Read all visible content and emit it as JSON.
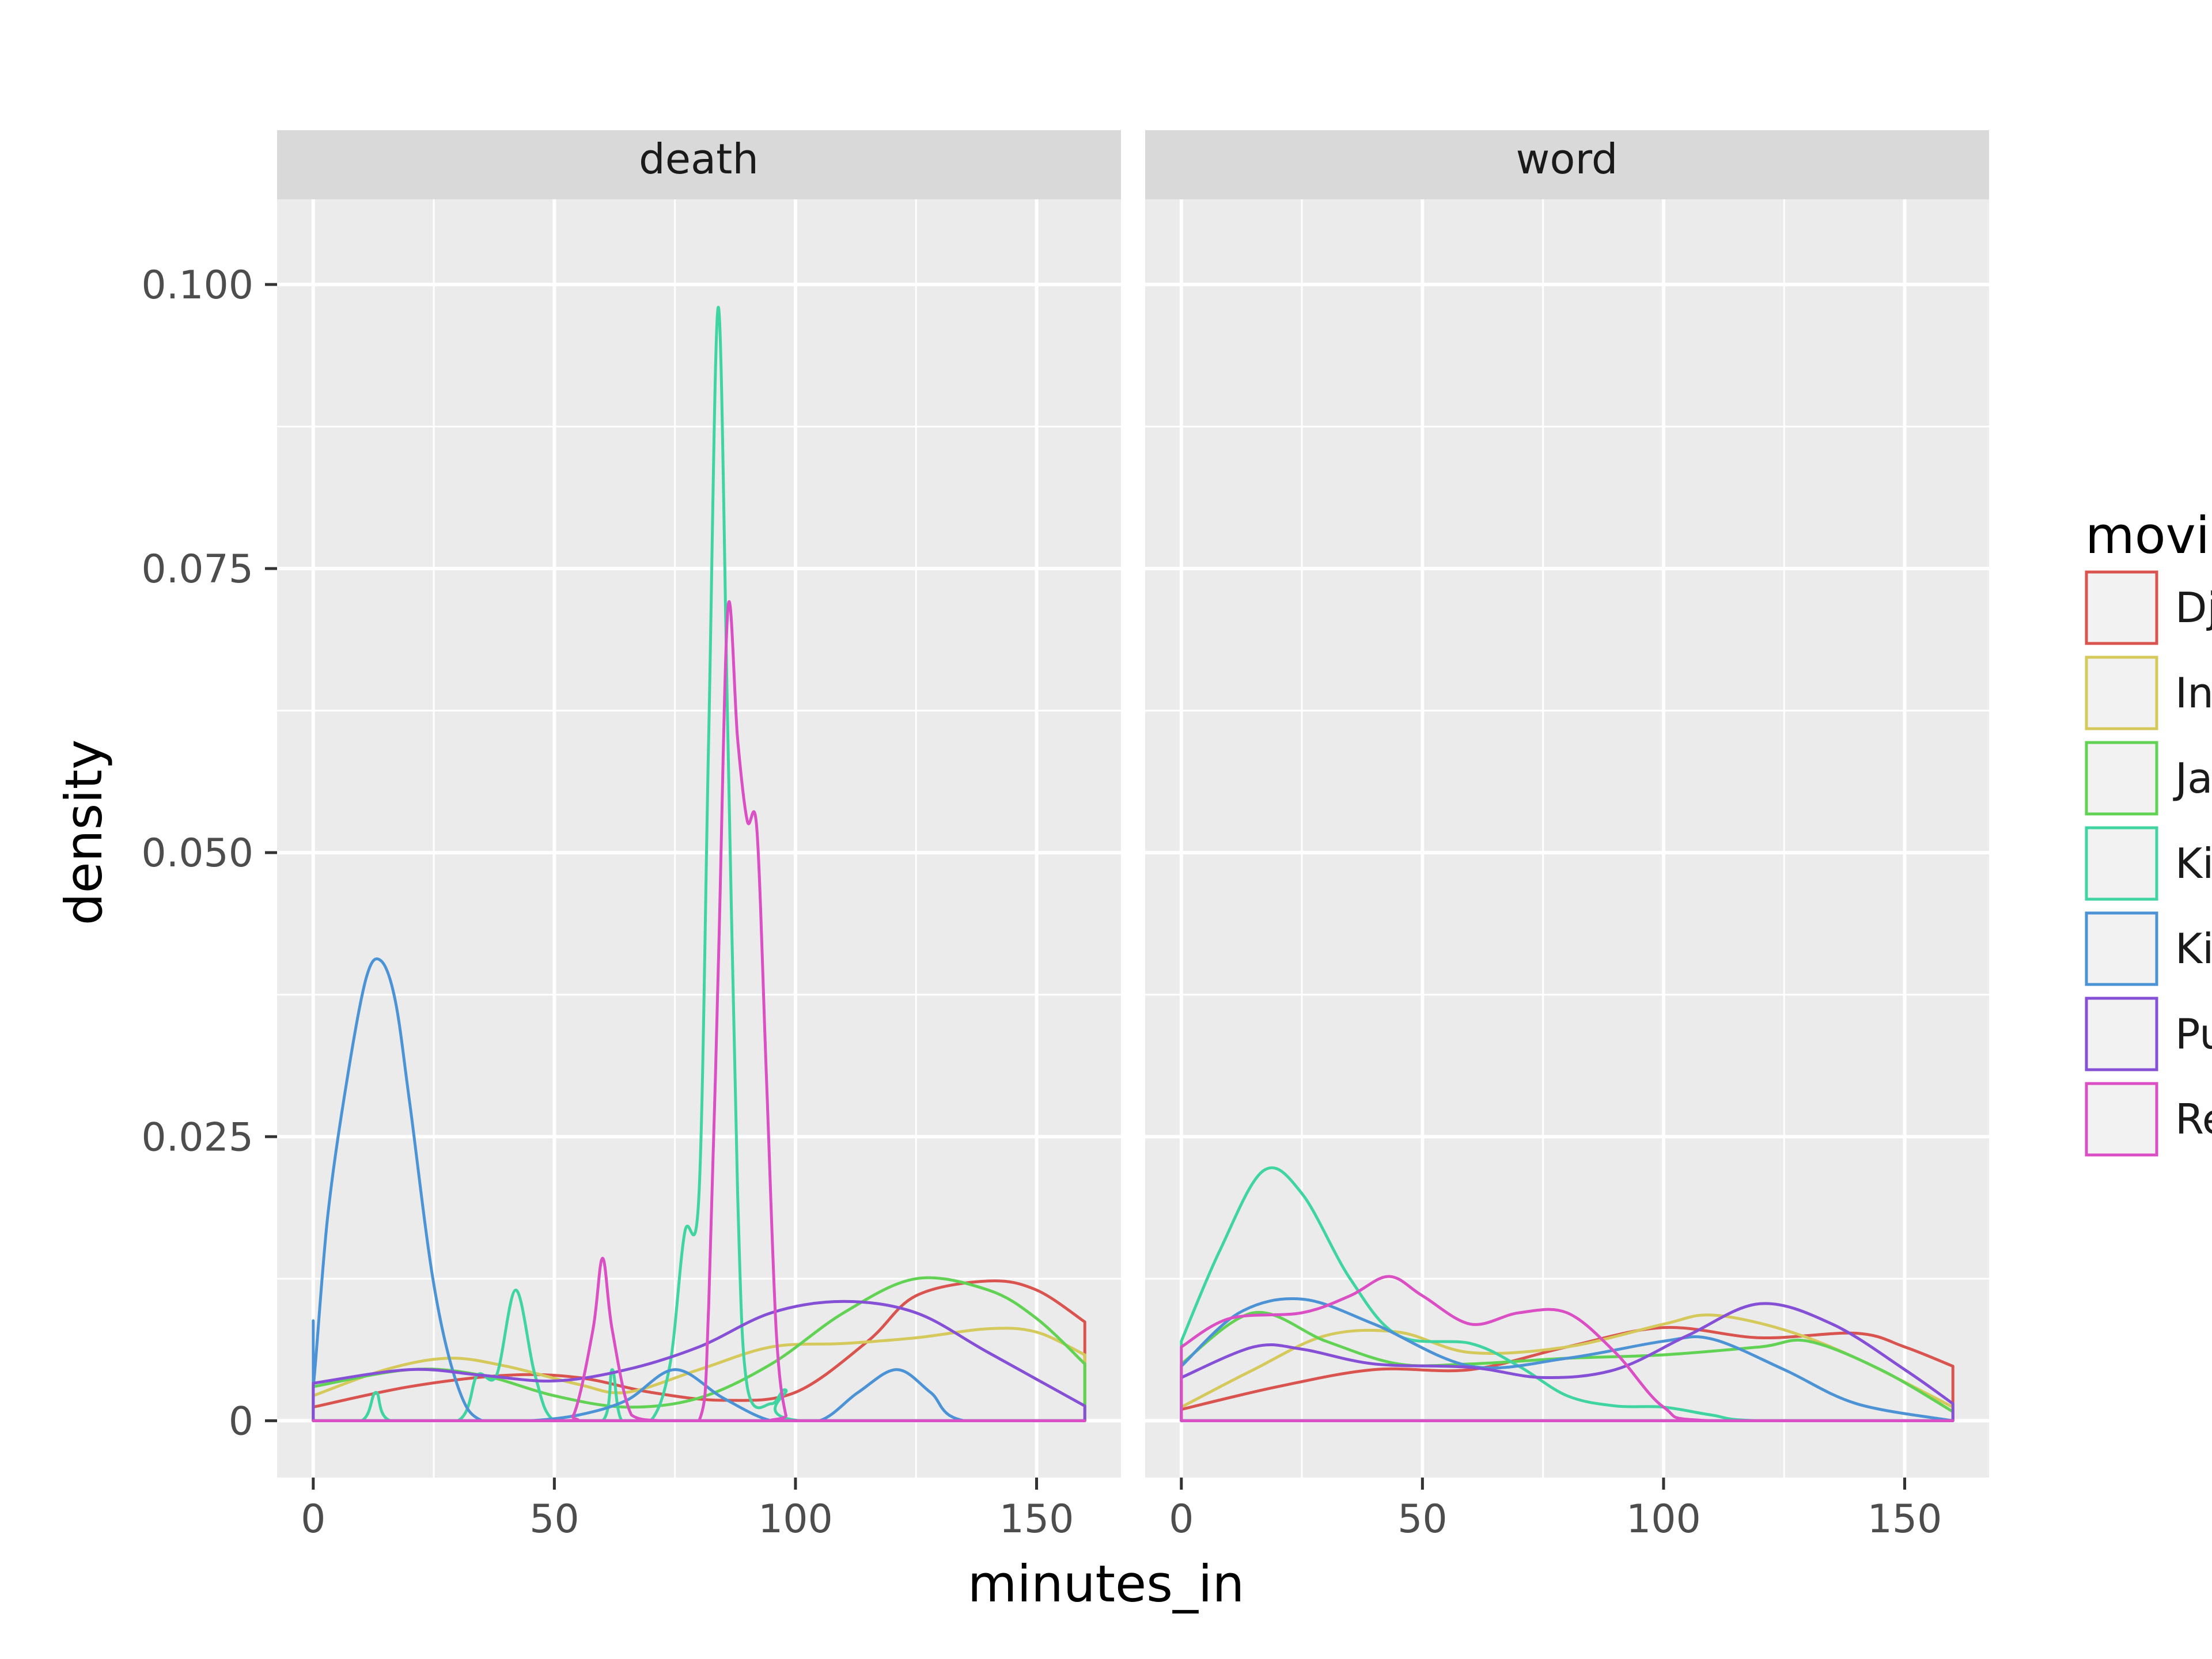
{
  "chart_data": {
    "type": "density",
    "xlabel": "minutes_in",
    "ylabel": "density",
    "x_ticks": [
      0,
      50,
      100,
      150
    ],
    "x_tick_labels": [
      "0",
      "50",
      "100",
      "150"
    ],
    "y_ticks": [
      0,
      0.025,
      0.05,
      0.075,
      0.1
    ],
    "y_tick_labels": [
      "0",
      "0.025",
      "0.050",
      "0.075",
      "0.100"
    ],
    "xlim": [
      -7.5,
      167.5
    ],
    "ylim": [
      -0.005,
      0.1075
    ],
    "grid": true,
    "legend": {
      "title": "movi",
      "position": "right",
      "entries": [
        {
          "label": "Dj",
          "color": "#d9534f"
        },
        {
          "label": "In",
          "color": "#d4c95a"
        },
        {
          "label": "Ja",
          "color": "#62d254"
        },
        {
          "label": "Ki",
          "color": "#3fd4a0"
        },
        {
          "label": "Ki",
          "color": "#4c93d6"
        },
        {
          "label": "Pu",
          "color": "#8650d6"
        },
        {
          "label": "Re",
          "color": "#da4fc3"
        }
      ]
    },
    "panels": [
      {
        "title": "death",
        "series": [
          {
            "color": "#d9534f",
            "points": [
              [
                0,
                0.0012
              ],
              [
                20,
                0.003
              ],
              [
                40,
                0.004
              ],
              [
                55,
                0.0038
              ],
              [
                70,
                0.0025
              ],
              [
                85,
                0.0018
              ],
              [
                100,
                0.0025
              ],
              [
                115,
                0.007
              ],
              [
                125,
                0.011
              ],
              [
                140,
                0.0123
              ],
              [
                150,
                0.0115
              ],
              [
                160,
                0.0087
              ]
            ]
          },
          {
            "color": "#d4c95a",
            "points": [
              [
                0,
                0.0022
              ],
              [
                15,
                0.0045
              ],
              [
                28,
                0.0055
              ],
              [
                40,
                0.0048
              ],
              [
                55,
                0.0032
              ],
              [
                65,
                0.0025
              ],
              [
                80,
                0.0045
              ],
              [
                95,
                0.0065
              ],
              [
                110,
                0.0068
              ],
              [
                125,
                0.0073
              ],
              [
                140,
                0.0081
              ],
              [
                150,
                0.0078
              ],
              [
                160,
                0.0058
              ]
            ]
          },
          {
            "color": "#62d254",
            "points": [
              [
                0,
                0.003
              ],
              [
                20,
                0.0045
              ],
              [
                35,
                0.004
              ],
              [
                50,
                0.0022
              ],
              [
                65,
                0.0012
              ],
              [
                80,
                0.002
              ],
              [
                95,
                0.005
              ],
              [
                110,
                0.0095
              ],
              [
                125,
                0.0125
              ],
              [
                140,
                0.0115
              ],
              [
                150,
                0.009
              ],
              [
                160,
                0.005
              ]
            ]
          },
          {
            "color": "#3fd4a0",
            "points": [
              [
                0,
                0
              ],
              [
                10,
                0
              ],
              [
                13,
                0.0025
              ],
              [
                16,
                0
              ],
              [
                30,
                0
              ],
              [
                34,
                0.004
              ],
              [
                38,
                0.004
              ],
              [
                42,
                0.0115
              ],
              [
                46,
                0.004
              ],
              [
                50,
                0
              ],
              [
                60,
                0
              ],
              [
                62,
                0.0045
              ],
              [
                64,
                0
              ],
              [
                70,
                0
              ],
              [
                74,
                0.005
              ],
              [
                77,
                0.0165
              ],
              [
                80,
                0.02
              ],
              [
                82,
                0.06
              ],
              [
                84,
                0.098
              ],
              [
                86,
                0.06
              ],
              [
                88,
                0.02
              ],
              [
                90,
                0.003
              ],
              [
                95,
                0.0015
              ],
              [
                98,
                0.0027
              ],
              [
                101,
                0
              ],
              [
                160,
                0
              ]
            ]
          },
          {
            "color": "#4c93d6",
            "points": [
              [
                0,
                0.0088
              ],
              [
                0,
                0.003
              ],
              [
                3,
                0.018
              ],
              [
                7,
                0.03
              ],
              [
                11,
                0.039
              ],
              [
                14,
                0.0405
              ],
              [
                17,
                0.037
              ],
              [
                20,
                0.028
              ],
              [
                25,
                0.012
              ],
              [
                30,
                0.003
              ],
              [
                35,
                0
              ],
              [
                45,
                0
              ],
              [
                55,
                0.0005
              ],
              [
                65,
                0.0018
              ],
              [
                75,
                0.0045
              ],
              [
                85,
                0.002
              ],
              [
                95,
                0
              ],
              [
                105,
                0
              ],
              [
                113,
                0.0025
              ],
              [
                121,
                0.0045
              ],
              [
                128,
                0.0025
              ],
              [
                135,
                0
              ],
              [
                160,
                0
              ]
            ]
          },
          {
            "color": "#8650d6",
            "points": [
              [
                0,
                0.0033
              ],
              [
                20,
                0.0045
              ],
              [
                35,
                0.004
              ],
              [
                50,
                0.0035
              ],
              [
                65,
                0.0045
              ],
              [
                80,
                0.0065
              ],
              [
                95,
                0.0095
              ],
              [
                110,
                0.0105
              ],
              [
                125,
                0.0095
              ],
              [
                140,
                0.006
              ],
              [
                160,
                0.0013
              ]
            ]
          },
          {
            "color": "#da4fc3",
            "points": [
              [
                0,
                0
              ],
              [
                50,
                0
              ],
              [
                54,
                0.0005
              ],
              [
                58,
                0.008
              ],
              [
                60,
                0.0143
              ],
              [
                62,
                0.008
              ],
              [
                66,
                0.0005
              ],
              [
                72,
                0
              ],
              [
                80,
                0
              ],
              [
                82,
                0.01
              ],
              [
                84,
                0.04
              ],
              [
                86,
                0.0715
              ],
              [
                88,
                0.06
              ],
              [
                90,
                0.0528
              ],
              [
                92,
                0.052
              ],
              [
                94,
                0.03
              ],
              [
                96,
                0.008
              ],
              [
                98,
                0.0005
              ],
              [
                100,
                0
              ],
              [
                160,
                0
              ]
            ]
          }
        ]
      },
      {
        "title": "word",
        "series": [
          {
            "color": "#d9534f",
            "points": [
              [
                0,
                0.001
              ],
              [
                20,
                0.003
              ],
              [
                40,
                0.0045
              ],
              [
                60,
                0.0045
              ],
              [
                80,
                0.0065
              ],
              [
                100,
                0.0082
              ],
              [
                120,
                0.0073
              ],
              [
                140,
                0.0077
              ],
              [
                150,
                0.0065
              ],
              [
                160,
                0.0048
              ]
            ]
          },
          {
            "color": "#d4c95a",
            "points": [
              [
                0,
                0.0012
              ],
              [
                15,
                0.0045
              ],
              [
                30,
                0.0075
              ],
              [
                45,
                0.0078
              ],
              [
                60,
                0.006
              ],
              [
                80,
                0.0065
              ],
              [
                100,
                0.0085
              ],
              [
                110,
                0.0093
              ],
              [
                125,
                0.008
              ],
              [
                140,
                0.0055
              ],
              [
                160,
                0.0012
              ]
            ]
          },
          {
            "color": "#62d254",
            "points": [
              [
                0,
                0.005
              ],
              [
                15,
                0.0095
              ],
              [
                30,
                0.007
              ],
              [
                45,
                0.005
              ],
              [
                60,
                0.005
              ],
              [
                80,
                0.0055
              ],
              [
                100,
                0.0058
              ],
              [
                120,
                0.0065
              ],
              [
                130,
                0.007
              ],
              [
                145,
                0.0045
              ],
              [
                160,
                0.0008
              ]
            ]
          },
          {
            "color": "#3fd4a0",
            "points": [
              [
                0,
                0.007
              ],
              [
                8,
                0.015
              ],
              [
                17,
                0.022
              ],
              [
                25,
                0.02
              ],
              [
                35,
                0.0125
              ],
              [
                45,
                0.0075
              ],
              [
                60,
                0.0068
              ],
              [
                70,
                0.0048
              ],
              [
                80,
                0.0022
              ],
              [
                90,
                0.0013
              ],
              [
                100,
                0.0012
              ],
              [
                110,
                0.0005
              ],
              [
                120,
                0
              ],
              [
                160,
                0
              ]
            ]
          },
          {
            "color": "#4c93d6",
            "points": [
              [
                0,
                0.0048
              ],
              [
                12,
                0.0095
              ],
              [
                25,
                0.0107
              ],
              [
                40,
                0.0085
              ],
              [
                60,
                0.0048
              ],
              [
                80,
                0.0055
              ],
              [
                100,
                0.007
              ],
              [
                110,
                0.0072
              ],
              [
                125,
                0.0045
              ],
              [
                140,
                0.0015
              ],
              [
                160,
                0
              ]
            ]
          },
          {
            "color": "#8650d6",
            "points": [
              [
                0,
                0.0038
              ],
              [
                15,
                0.0065
              ],
              [
                25,
                0.0063
              ],
              [
                40,
                0.005
              ],
              [
                60,
                0.0047
              ],
              [
                75,
                0.0038
              ],
              [
                90,
                0.0045
              ],
              [
                105,
                0.0075
              ],
              [
                120,
                0.0103
              ],
              [
                135,
                0.0085
              ],
              [
                150,
                0.0045
              ],
              [
                160,
                0.0015
              ]
            ]
          },
          {
            "color": "#da4fc3",
            "points": [
              [
                0,
                0.0065
              ],
              [
                10,
                0.009
              ],
              [
                25,
                0.0095
              ],
              [
                35,
                0.011
              ],
              [
                43,
                0.0127
              ],
              [
                50,
                0.011
              ],
              [
                60,
                0.0085
              ],
              [
                70,
                0.0095
              ],
              [
                80,
                0.0095
              ],
              [
                90,
                0.006
              ],
              [
                100,
                0.0012
              ],
              [
                110,
                0
              ],
              [
                160,
                0
              ]
            ]
          }
        ]
      }
    ]
  }
}
